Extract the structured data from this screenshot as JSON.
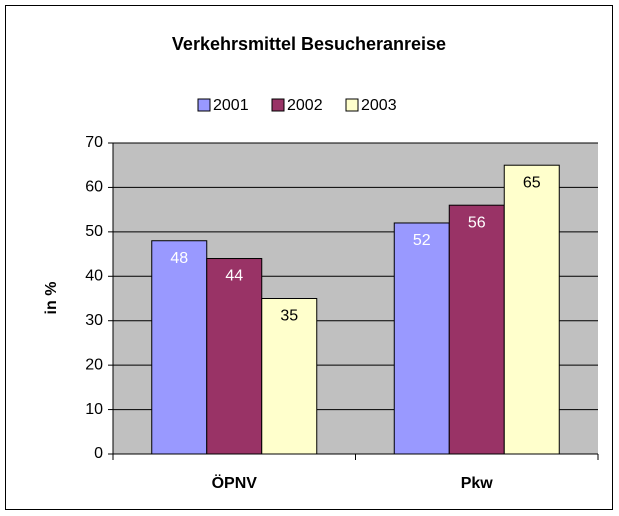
{
  "chart_data": {
    "type": "bar",
    "title": "Verkehrsmittel Besucheranreise",
    "y_label": "in %",
    "categories": [
      "ÖPNV",
      "Pkw"
    ],
    "series": [
      {
        "name": "2001",
        "color": "#9999ff",
        "label_color": "#ffffff",
        "values": [
          48,
          52
        ]
      },
      {
        "name": "2002",
        "color": "#993366",
        "label_color": "#ffffff",
        "values": [
          44,
          56
        ]
      },
      {
        "name": "2003",
        "color": "#ffffcc",
        "label_color": "#000000",
        "values": [
          35,
          65
        ]
      }
    ],
    "ylim": [
      0,
      70
    ],
    "yticks": [
      0,
      10,
      20,
      30,
      40,
      50,
      60,
      70
    ],
    "grid": true,
    "legend": "top"
  }
}
